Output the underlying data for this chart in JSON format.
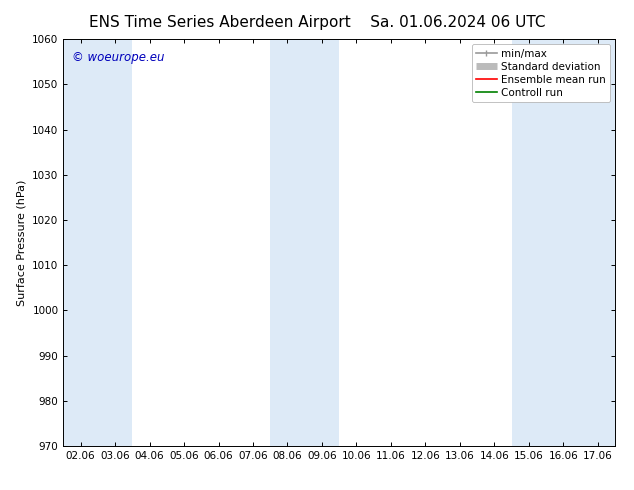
{
  "title": "ENS Time Series Aberdeen Airport",
  "title_date": "Sa. 01.06.2024 06 UTC",
  "ylabel": "Surface Pressure (hPa)",
  "ylim": [
    970,
    1060
  ],
  "yticks": [
    970,
    980,
    990,
    1000,
    1010,
    1020,
    1030,
    1040,
    1050,
    1060
  ],
  "xlabels": [
    "02.06",
    "03.06",
    "04.06",
    "05.06",
    "06.06",
    "07.06",
    "08.06",
    "09.06",
    "10.06",
    "11.06",
    "12.06",
    "13.06",
    "14.06",
    "15.06",
    "16.06",
    "17.06"
  ],
  "num_ticks": 16,
  "shaded_indices": [
    0,
    1,
    6,
    7,
    13,
    14,
    15
  ],
  "shade_color": "#ddeaf7",
  "bg_color": "#ffffff",
  "watermark": "© woeurope.eu",
  "watermark_color": "#0000bb",
  "legend_items": [
    {
      "label": "min/max",
      "color": "#999999",
      "lw": 1.2,
      "style": "-"
    },
    {
      "label": "Standard deviation",
      "color": "#bbbbbb",
      "lw": 5,
      "style": "-"
    },
    {
      "label": "Ensemble mean run",
      "color": "#ff0000",
      "lw": 1.2,
      "style": "-"
    },
    {
      "label": "Controll run",
      "color": "#008000",
      "lw": 1.2,
      "style": "-"
    }
  ],
  "title_fontsize": 11,
  "axis_fontsize": 8,
  "tick_fontsize": 7.5,
  "watermark_fontsize": 8.5,
  "legend_fontsize": 7.5
}
